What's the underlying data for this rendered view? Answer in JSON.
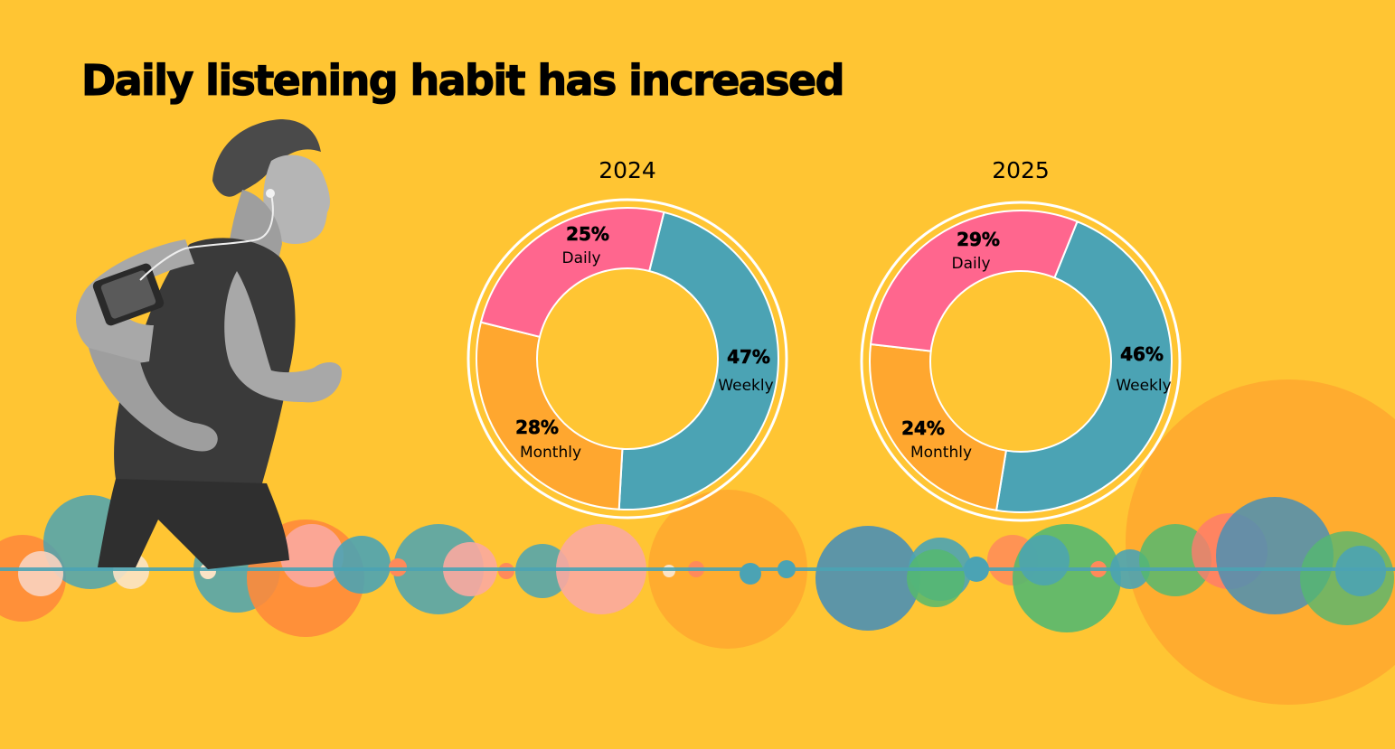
{
  "slide": {
    "title": "Daily listening habit has increased"
  },
  "colors": {
    "background": "#FFC533",
    "daily": "#FF668E",
    "weekly": "#4BA3B4",
    "monthly": "#FFA72F",
    "ring": "#FFFFFF"
  },
  "photo": {
    "icon": "runner-with-earphones-photo"
  },
  "chart_data": [
    {
      "type": "pie",
      "title": "2024",
      "categories": [
        "Weekly",
        "Monthly",
        "Daily"
      ],
      "values": [
        47,
        28,
        25
      ],
      "labels": [
        "47%",
        "28%",
        "25%"
      ]
    },
    {
      "type": "pie",
      "title": "2025",
      "categories": [
        "Weekly",
        "Monthly",
        "Daily"
      ],
      "values": [
        46,
        24,
        29
      ],
      "labels": [
        "46%",
        "24%",
        "29%"
      ]
    }
  ]
}
